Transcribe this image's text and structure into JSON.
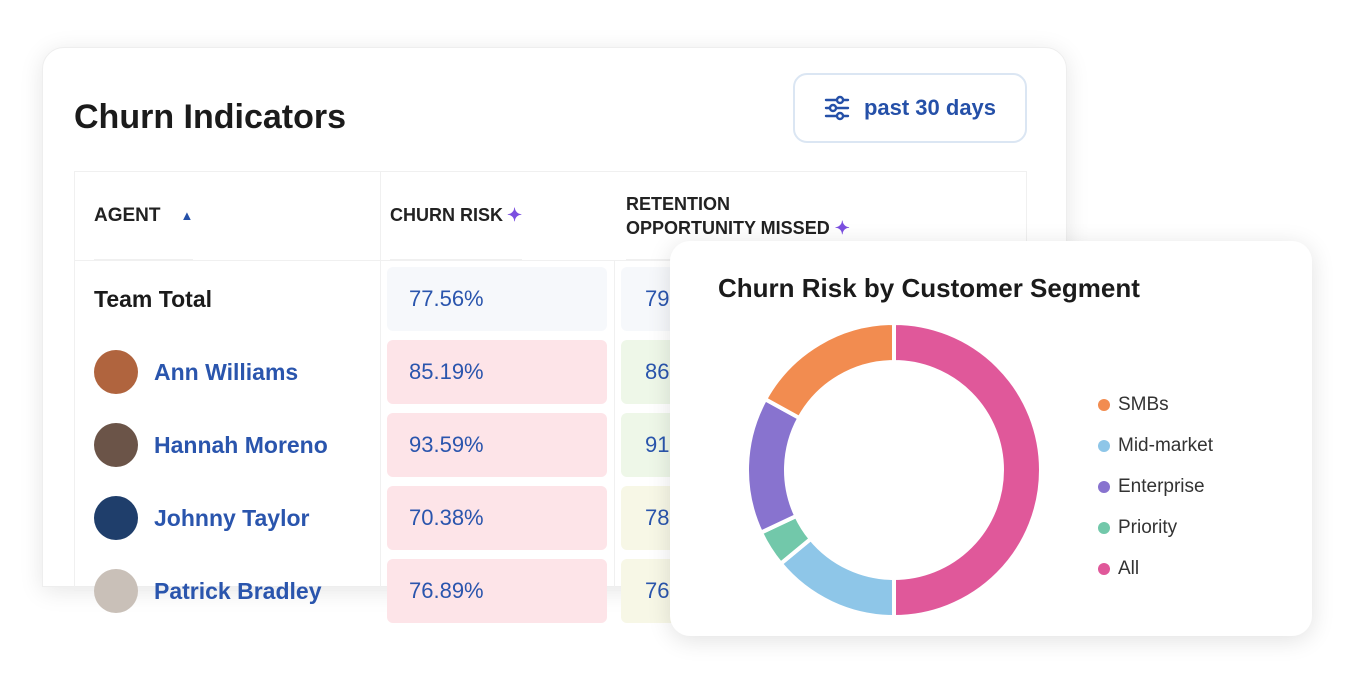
{
  "panel": {
    "title": "Churn Indicators",
    "filter_label": "past 30 days"
  },
  "table": {
    "headers": {
      "agent": "AGENT",
      "churn_risk": "CHURN RISK",
      "retention_line1": "RETENTION",
      "retention_line2": "OPPORTUNITY MISSED"
    },
    "team_total": {
      "label": "Team Total",
      "churn_risk": "77.56%",
      "retention": "79"
    },
    "rows": [
      {
        "name": "Ann Williams",
        "churn_risk": "85.19%",
        "retention": "86",
        "avatar_color": "#b0643e",
        "ret_color": "#eef7e8"
      },
      {
        "name": "Hannah Moreno",
        "churn_risk": "93.59%",
        "retention": "91",
        "avatar_color": "#6b5448",
        "ret_color": "#eef7e8"
      },
      {
        "name": "Johnny Taylor",
        "churn_risk": "70.38%",
        "retention": "78",
        "avatar_color": "#1f3e6b",
        "ret_color": "#f7f7e6"
      },
      {
        "name": "Patrick Bradley",
        "churn_risk": "76.89%",
        "retention": "76",
        "avatar_color": "#c9c0b8",
        "ret_color": "#f7f7e6"
      }
    ]
  },
  "chart_data": {
    "type": "pie",
    "title": "Churn Risk by Customer Segment",
    "donut": true,
    "labels": [
      "SMBs",
      "Mid-market",
      "Enterprise",
      "Priority",
      "All"
    ],
    "values": [
      17,
      14,
      15,
      4,
      50
    ],
    "colors": [
      "#f28c50",
      "#8ec6e8",
      "#8873cf",
      "#72c8aa",
      "#e0589a"
    ],
    "order_clockwise_from_top": [
      "All",
      "Mid-market",
      "Priority",
      "Enterprise",
      "SMBs"
    ],
    "legend": "right"
  }
}
